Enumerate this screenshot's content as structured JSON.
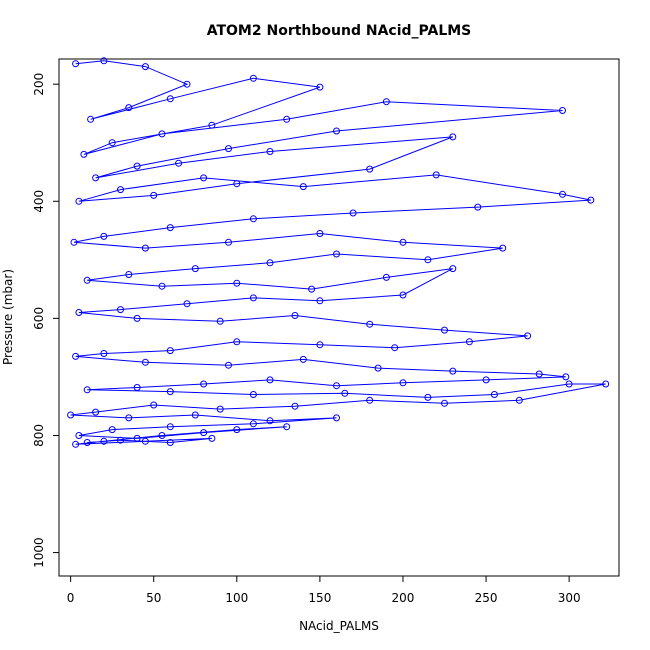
{
  "chart_data": {
    "type": "line",
    "title": "ATOM2 Northbound NAcid_PALMS",
    "xlabel": "NAcid_PALMS",
    "ylabel": "Pressure (mbar)",
    "xlim": [
      -7,
      330
    ],
    "ylim": [
      1040,
      157
    ],
    "y_reversed": true,
    "x_ticks": [
      0,
      50,
      100,
      150,
      200,
      250,
      300
    ],
    "y_ticks": [
      200,
      400,
      600,
      800,
      1000
    ],
    "grid": false,
    "line_color": "#0000ff",
    "marker": "open-circle",
    "series": [
      {
        "values": [
          [
            3,
            165
          ],
          [
            20,
            160
          ],
          [
            45,
            170
          ],
          [
            70,
            200
          ],
          [
            35,
            240
          ],
          [
            12,
            260
          ],
          [
            60,
            225
          ],
          [
            110,
            190
          ],
          [
            150,
            205
          ],
          [
            85,
            270
          ],
          [
            25,
            300
          ],
          [
            8,
            320
          ],
          [
            55,
            285
          ],
          [
            130,
            260
          ],
          [
            190,
            230
          ],
          [
            296,
            245
          ],
          [
            160,
            280
          ],
          [
            95,
            310
          ],
          [
            40,
            340
          ],
          [
            15,
            360
          ],
          [
            65,
            335
          ],
          [
            120,
            315
          ],
          [
            230,
            290
          ],
          [
            180,
            345
          ],
          [
            100,
            370
          ],
          [
            50,
            390
          ],
          [
            5,
            400
          ],
          [
            30,
            380
          ],
          [
            80,
            360
          ],
          [
            140,
            375
          ],
          [
            220,
            355
          ],
          [
            296,
            388
          ],
          [
            313,
            398
          ],
          [
            245,
            410
          ],
          [
            170,
            420
          ],
          [
            110,
            430
          ],
          [
            60,
            445
          ],
          [
            20,
            460
          ],
          [
            2,
            470
          ],
          [
            45,
            480
          ],
          [
            95,
            470
          ],
          [
            150,
            455
          ],
          [
            200,
            470
          ],
          [
            260,
            480
          ],
          [
            215,
            500
          ],
          [
            160,
            490
          ],
          [
            120,
            505
          ],
          [
            75,
            515
          ],
          [
            35,
            525
          ],
          [
            10,
            535
          ],
          [
            55,
            545
          ],
          [
            100,
            540
          ],
          [
            145,
            550
          ],
          [
            190,
            530
          ],
          [
            230,
            515
          ],
          [
            200,
            560
          ],
          [
            150,
            570
          ],
          [
            110,
            565
          ],
          [
            70,
            575
          ],
          [
            30,
            585
          ],
          [
            5,
            590
          ],
          [
            40,
            600
          ],
          [
            90,
            605
          ],
          [
            135,
            595
          ],
          [
            180,
            610
          ],
          [
            225,
            620
          ],
          [
            275,
            630
          ],
          [
            240,
            640
          ],
          [
            195,
            650
          ],
          [
            150,
            645
          ],
          [
            100,
            640
          ],
          [
            60,
            655
          ],
          [
            20,
            660
          ],
          [
            3,
            665
          ],
          [
            45,
            675
          ],
          [
            95,
            680
          ],
          [
            140,
            670
          ],
          [
            185,
            685
          ],
          [
            230,
            690
          ],
          [
            282,
            695
          ],
          [
            298,
            700
          ],
          [
            250,
            705
          ],
          [
            200,
            710
          ],
          [
            160,
            715
          ],
          [
            120,
            705
          ],
          [
            80,
            712
          ],
          [
            40,
            718
          ],
          [
            10,
            722
          ],
          [
            60,
            725
          ],
          [
            110,
            730
          ],
          [
            165,
            728
          ],
          [
            215,
            735
          ],
          [
            255,
            730
          ],
          [
            300,
            712
          ],
          [
            322,
            712
          ],
          [
            270,
            740
          ],
          [
            225,
            745
          ],
          [
            180,
            740
          ],
          [
            135,
            750
          ],
          [
            90,
            755
          ],
          [
            50,
            748
          ],
          [
            15,
            760
          ],
          [
            0,
            765
          ],
          [
            35,
            770
          ],
          [
            75,
            765
          ],
          [
            120,
            775
          ],
          [
            160,
            770
          ],
          [
            110,
            780
          ],
          [
            60,
            785
          ],
          [
            25,
            790
          ],
          [
            5,
            800
          ],
          [
            40,
            805
          ],
          [
            80,
            795
          ],
          [
            130,
            785
          ],
          [
            100,
            790
          ],
          [
            55,
            800
          ],
          [
            20,
            810
          ],
          [
            3,
            815
          ],
          [
            45,
            810
          ],
          [
            85,
            805
          ],
          [
            60,
            812
          ],
          [
            30,
            808
          ],
          [
            10,
            812
          ]
        ]
      }
    ]
  }
}
